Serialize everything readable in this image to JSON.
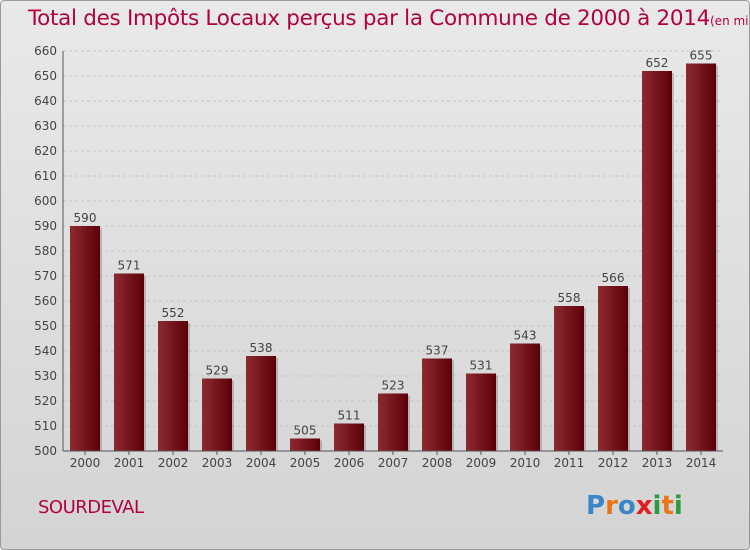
{
  "title": "Total des Impôts Locaux perçus par la Commune de 2000 à 2014",
  "unit_note": "(en milliers d'€)",
  "commune": "SOURDEVAL",
  "brand": {
    "letters": [
      "P",
      "r",
      "o",
      "x",
      "i",
      "t",
      "i"
    ],
    "colors": [
      "#3a86c8",
      "#e8751a",
      "#3a86c8",
      "#e11f1f",
      "#2e9b3e",
      "#e8751a",
      "#2e9b3e"
    ]
  },
  "colors": {
    "accent": "#b20043",
    "bar_dark": "#5c0008",
    "bar_light": "#8c2a32"
  },
  "chart_data": {
    "type": "bar",
    "title": "Total des Impôts Locaux perçus par la Commune de 2000 à 2014",
    "xlabel": "",
    "ylabel": "",
    "categories": [
      "2000",
      "2001",
      "2002",
      "2003",
      "2004",
      "2005",
      "2006",
      "2007",
      "2008",
      "2009",
      "2010",
      "2011",
      "2012",
      "2013",
      "2014"
    ],
    "values": [
      590,
      571,
      552,
      529,
      538,
      505,
      511,
      523,
      537,
      531,
      543,
      558,
      566,
      652,
      655
    ],
    "ylim": [
      500,
      660
    ],
    "yticks": [
      500,
      510,
      520,
      530,
      540,
      550,
      560,
      570,
      580,
      590,
      600,
      610,
      620,
      630,
      640,
      650,
      660
    ],
    "grid": true
  }
}
